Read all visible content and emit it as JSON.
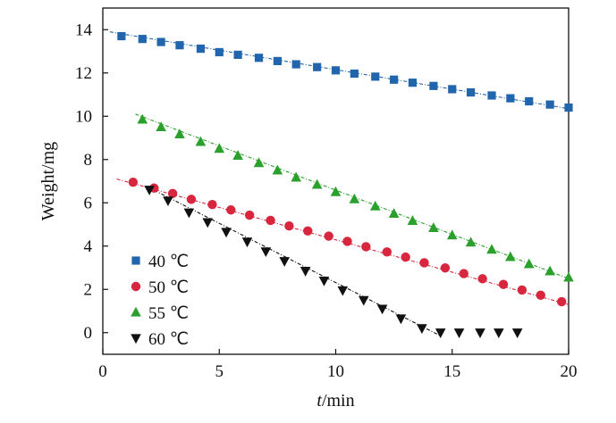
{
  "chart_data": {
    "type": "scatter",
    "title": "",
    "xlabel_italic": "t",
    "xlabel_rest": "/min",
    "ylabel": "Weight/mg",
    "xlim": [
      0,
      20
    ],
    "ylim": [
      -1,
      15
    ],
    "xticks": [
      0,
      5,
      10,
      15,
      20
    ],
    "xtick_labels": [
      "0",
      "5",
      "10",
      "15",
      "20"
    ],
    "yticks": [
      0,
      2,
      4,
      6,
      8,
      10,
      12,
      14
    ],
    "ytick_labels": [
      "0",
      "2",
      "4",
      "6",
      "8",
      "10",
      "12",
      "14"
    ],
    "grid": false,
    "legend_position": "bottom-left",
    "series": [
      {
        "name": "40 ℃",
        "marker": "square",
        "color": "#2166ac",
        "fit_line": [
          [
            0.3,
            13.9
          ],
          [
            20.0,
            10.35
          ]
        ],
        "x": [
          0.8,
          1.7,
          2.5,
          3.3,
          4.2,
          5.0,
          5.8,
          6.7,
          7.5,
          8.3,
          9.2,
          10.0,
          10.8,
          11.7,
          12.5,
          13.3,
          14.2,
          15.0,
          15.8,
          16.7,
          17.5,
          18.3,
          19.2,
          20.0
        ],
        "y": [
          13.7,
          13.57,
          13.43,
          13.28,
          13.12,
          12.96,
          12.84,
          12.7,
          12.55,
          12.4,
          12.27,
          12.12,
          11.97,
          11.83,
          11.69,
          11.55,
          11.4,
          11.25,
          11.1,
          10.96,
          10.83,
          10.69,
          10.54,
          10.4
        ]
      },
      {
        "name": "50 ℃",
        "marker": "circle",
        "color": "#d7263d",
        "fit_line": [
          [
            0.6,
            7.1
          ],
          [
            20.0,
            1.3
          ]
        ],
        "x": [
          1.3,
          2.2,
          3.0,
          3.8,
          4.7,
          5.5,
          6.3,
          7.2,
          8.0,
          8.8,
          9.7,
          10.5,
          11.3,
          12.2,
          13.0,
          13.8,
          14.7,
          15.5,
          16.3,
          17.2,
          18.0,
          18.8,
          19.7
        ],
        "y": [
          6.95,
          6.68,
          6.43,
          6.16,
          5.92,
          5.67,
          5.43,
          5.19,
          4.93,
          4.7,
          4.46,
          4.22,
          3.97,
          3.73,
          3.49,
          3.23,
          2.99,
          2.73,
          2.49,
          2.23,
          1.97,
          1.73,
          1.43
        ]
      },
      {
        "name": "55 ℃",
        "marker": "triangle-up",
        "color": "#2ca02c",
        "fit_line": [
          [
            1.4,
            10.1
          ],
          [
            20.0,
            2.5
          ]
        ],
        "x": [
          1.7,
          2.5,
          3.3,
          4.2,
          5.0,
          5.8,
          6.7,
          7.5,
          8.3,
          9.2,
          10.0,
          10.8,
          11.7,
          12.5,
          13.3,
          14.2,
          15.0,
          15.8,
          16.7,
          17.5,
          18.3,
          19.2,
          20.0
        ],
        "y": [
          9.85,
          9.5,
          9.17,
          8.82,
          8.5,
          8.18,
          7.84,
          7.5,
          7.17,
          6.84,
          6.5,
          6.17,
          5.84,
          5.5,
          5.17,
          4.84,
          4.5,
          4.17,
          3.84,
          3.5,
          3.17,
          2.84,
          2.55
        ]
      },
      {
        "name": "60 ℃",
        "marker": "triangle-down",
        "color": "#111111",
        "fit_line": [
          [
            1.9,
            6.75
          ],
          [
            14.5,
            -0.15
          ]
        ],
        "x": [
          2.0,
          2.8,
          3.7,
          4.5,
          5.3,
          6.2,
          7.0,
          7.8,
          8.7,
          9.5,
          10.3,
          11.2,
          12.0,
          12.8,
          13.7,
          14.5,
          15.3,
          16.2,
          17.0,
          17.8
        ],
        "y": [
          6.6,
          6.1,
          5.55,
          5.1,
          4.65,
          4.2,
          3.75,
          3.3,
          2.85,
          2.4,
          1.95,
          1.5,
          1.1,
          0.65,
          0.2,
          0.0,
          0.0,
          0.0,
          0.0,
          0.0
        ]
      }
    ]
  }
}
